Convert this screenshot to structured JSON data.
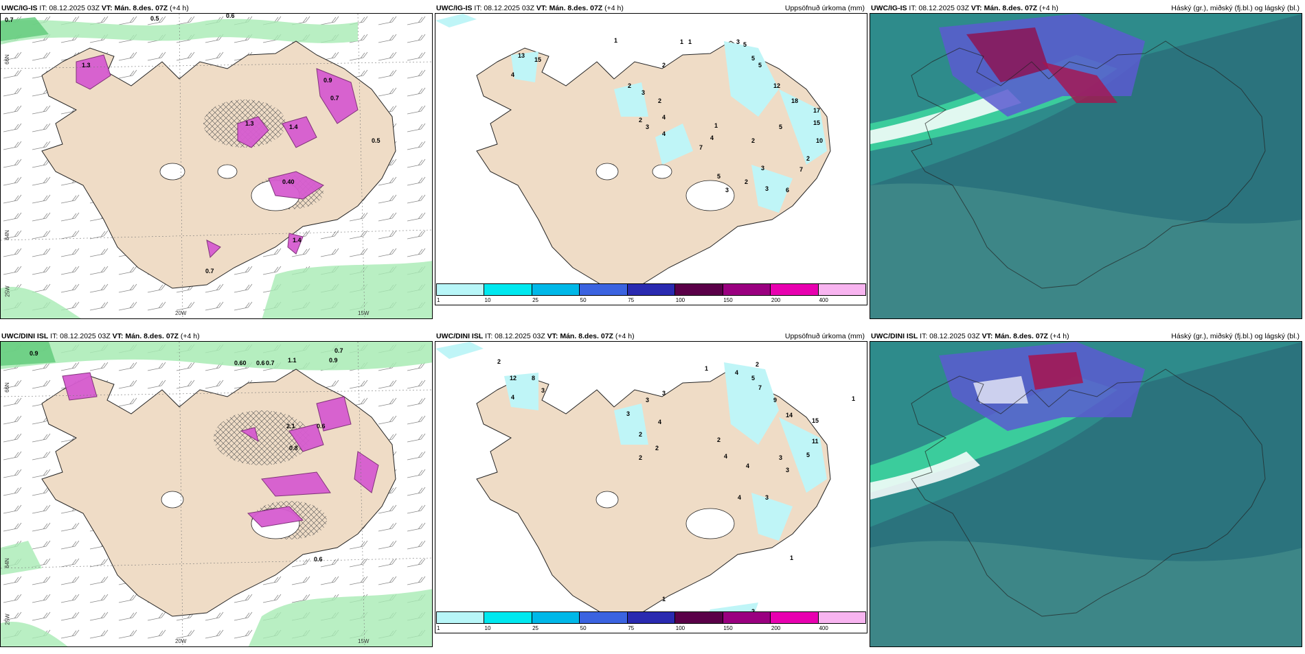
{
  "panels": [
    {
      "id": "p1",
      "source": "UWC/IG-IS",
      "it": "IT: 08.12.2025 03Z",
      "vt": "VT: Mán. 8.des. 07Z",
      "lead": "(+4 h)",
      "right": "",
      "type": "wind"
    },
    {
      "id": "p2",
      "source": "UWC/IG-IS",
      "it": "IT: 08.12.2025 03Z",
      "vt": "VT: Mán. 8.des. 07Z",
      "lead": "(+4 h)",
      "right": "Uppsöfnuð úrkoma (mm)",
      "type": "precip"
    },
    {
      "id": "p3",
      "source": "UWC/IG-IS",
      "it": "IT: 08.12.2025 03Z",
      "vt": "VT: Mán. 8.des. 07Z",
      "lead": "(+4 h)",
      "right": "Háský (gr.), miðský (fj.bl.) og lágský (bl.)",
      "type": "cloud"
    },
    {
      "id": "p4",
      "source": "UWC/DINI ISL",
      "it": "IT: 08.12.2025 03Z",
      "vt": "VT: Mán. 8.des. 07Z",
      "lead": "(+4 h)",
      "right": "",
      "type": "wind"
    },
    {
      "id": "p5",
      "source": "UWC/DINI ISL",
      "it": "IT: 08.12.2025 03Z",
      "vt": "VT: Mán. 8.des. 07Z",
      "lead": "(+4 h)",
      "right": "Uppsöfnuð úrkoma (mm)",
      "type": "precip"
    },
    {
      "id": "p6",
      "source": "UWC/DINI ISL",
      "it": "IT: 08.12.2025 03Z",
      "vt": "VT: Mán. 8.des. 07Z",
      "lead": "(+4 h)",
      "right": "Háský (gr.), miðský (fj.bl.) og lágský (bl.)",
      "type": "cloud"
    }
  ],
  "legend": {
    "colors": [
      "#b8f6f8",
      "#00e8ef",
      "#00b8e8",
      "#3b63e0",
      "#2a2ab0",
      "#5a0048",
      "#9a0080",
      "#e800b0",
      "#f8b4f0"
    ],
    "ticks": [
      "1",
      "10",
      "25",
      "50",
      "75",
      "100",
      "150",
      "200",
      "400"
    ]
  },
  "axis_labels": {
    "lat_top": "66N",
    "lat_bottom": "64N",
    "lon_left": "25W",
    "lon_mid": "20W",
    "lon_right": "15W"
  },
  "wind_labels_p1": [
    "0.7",
    "0.5",
    "0.6",
    "1.3",
    "0.9",
    "1.3",
    "0.40",
    "1.4",
    "0.7",
    "1.4",
    "0.5",
    "0.7"
  ],
  "wind_labels_p4": [
    "0.9",
    "0.60",
    "0.6",
    "0.7",
    "1.1",
    "0.9",
    "2.1",
    "0.8",
    "0.6",
    "0.7",
    "0.6"
  ],
  "precip_p2": [
    "1",
    "1",
    "1",
    "13",
    "15",
    "4",
    "3",
    "5",
    "5",
    "5",
    "2",
    "2",
    "3",
    "2",
    "2",
    "4",
    "3",
    "4",
    "12",
    "18",
    "17",
    "15",
    "10",
    "7",
    "4",
    "2",
    "5",
    "7",
    "1",
    "3",
    "2",
    "3",
    "6",
    "3",
    "5",
    "2"
  ],
  "precip_p5": [
    "2",
    "12",
    "8",
    "4",
    "3",
    "1",
    "2",
    "4",
    "5",
    "7",
    "9",
    "1",
    "3",
    "3",
    "3",
    "2",
    "2",
    "4",
    "14",
    "15",
    "11",
    "5",
    "4",
    "2",
    "4",
    "3",
    "3",
    "1",
    "2",
    "3",
    "4",
    "1",
    "2"
  ],
  "colors": {
    "land": "#efdcc6",
    "wind_green": "#86e39a",
    "wind_pink": "#e063d8",
    "precip_cyan": "#bff5f7",
    "cloud_base": "#2a8a8a"
  }
}
